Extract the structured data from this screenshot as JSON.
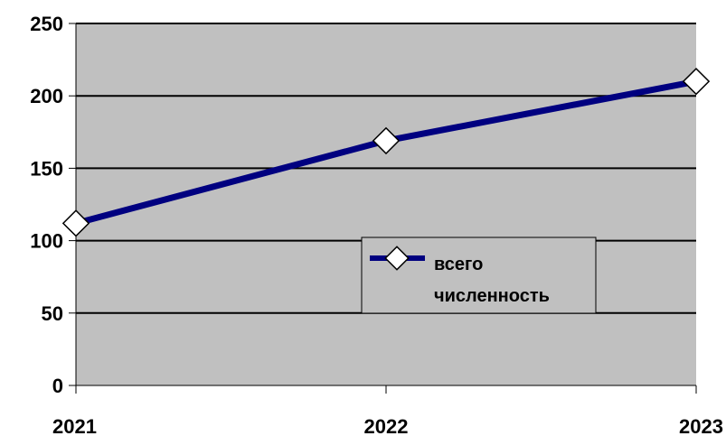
{
  "chart_data": {
    "type": "line",
    "categories": [
      "2021",
      "2022",
      "2023"
    ],
    "series": [
      {
        "name": "всего численность",
        "values": [
          112,
          169,
          210
        ]
      }
    ],
    "title": "",
    "xlabel": "",
    "ylabel": "",
    "ylim": [
      0,
      250
    ],
    "yticks": [
      "0",
      "50",
      "100",
      "150",
      "200",
      "250"
    ],
    "grid": "horizontal",
    "legend": {
      "position": "center-right",
      "lines": [
        "всего",
        "численность"
      ]
    },
    "colors": {
      "plot_area": "#c0c0c0",
      "line": "#000080",
      "marker_fill": "#ffffff",
      "marker_stroke": "#000000",
      "grid": "#000000"
    }
  }
}
